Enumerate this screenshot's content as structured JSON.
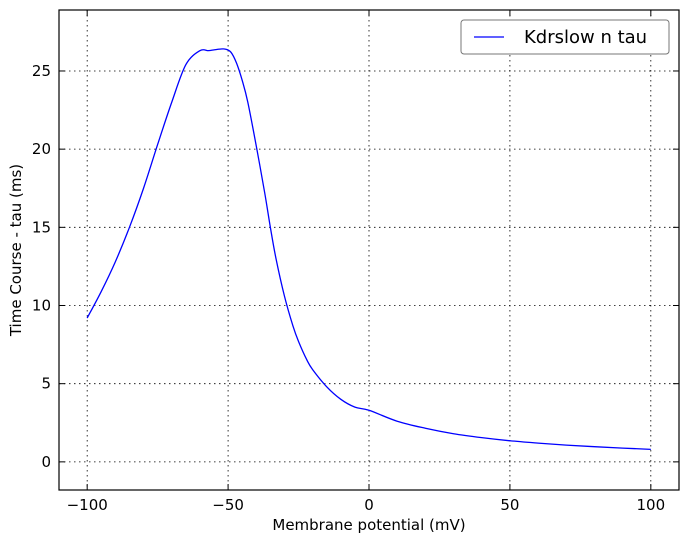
{
  "chart_data": {
    "type": "line",
    "xlabel": "Membrane potential (mV)",
    "ylabel": "Time Course - tau (ms)",
    "xlim": [
      -110,
      110
    ],
    "ylim": [
      -1.8,
      28.9
    ],
    "xticks": [
      -100,
      -50,
      0,
      50,
      100
    ],
    "xtick_labels": [
      "−100",
      "−50",
      "0",
      "50",
      "100"
    ],
    "yticks": [
      0,
      5,
      10,
      15,
      20,
      25
    ],
    "ytick_labels": [
      "0",
      "5",
      "10",
      "15",
      "20",
      "25"
    ],
    "grid": true,
    "legend_position": "top-right",
    "series": [
      {
        "name": "Kdrslow n tau",
        "color": "#0000ff",
        "x": [
          -100,
          -95,
          -90,
          -85,
          -80,
          -75,
          -70,
          -65,
          -60,
          -57,
          -55,
          -53,
          -51,
          -49,
          -47,
          -45,
          -43,
          -40,
          -37,
          -35,
          -33,
          -30,
          -27,
          -25,
          -22,
          -20,
          -15,
          -10,
          -5,
          0,
          10,
          20,
          30,
          40,
          50,
          60,
          70,
          80,
          90,
          100
        ],
        "y": [
          9.2,
          10.9,
          12.8,
          15.0,
          17.5,
          20.3,
          23.0,
          25.4,
          26.3,
          26.3,
          26.35,
          26.4,
          26.4,
          26.2,
          25.5,
          24.4,
          23.0,
          20.2,
          17.2,
          15.0,
          13.0,
          10.6,
          8.7,
          7.7,
          6.5,
          5.9,
          4.8,
          4.0,
          3.5,
          3.3,
          2.6,
          2.15,
          1.8,
          1.55,
          1.35,
          1.2,
          1.07,
          0.97,
          0.88,
          0.8
        ]
      }
    ]
  }
}
